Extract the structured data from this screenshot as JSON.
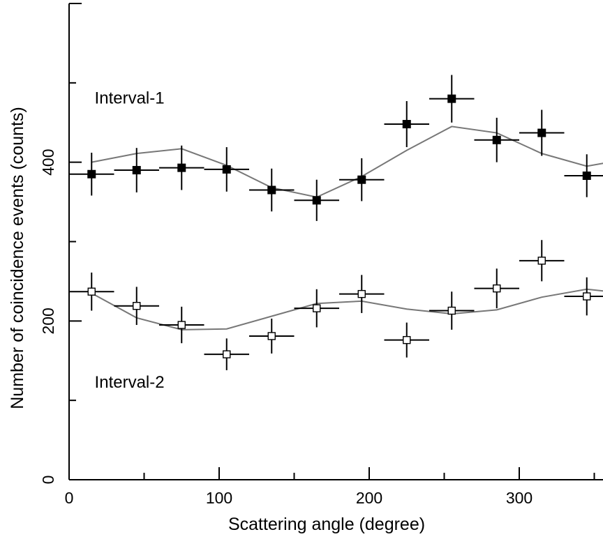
{
  "chart_data": {
    "type": "scatter",
    "title": "",
    "xlabel": "Scattering angle (degree)",
    "ylabel": "Number of coincidence events (counts)",
    "xlim": [
      0,
      360
    ],
    "ylim": [
      0,
      600
    ],
    "x_ticks": [
      0,
      100,
      200,
      300
    ],
    "y_ticks": [
      0,
      200,
      400
    ],
    "x_tick_labels": [
      "0",
      "100",
      "200",
      "300"
    ],
    "y_tick_labels": [
      "0",
      "200",
      "400"
    ],
    "x_error": 15,
    "grid": false,
    "annotations": [
      {
        "text": "Interval-1",
        "x": 17,
        "y": 474
      },
      {
        "text": "Interval-2",
        "x": 17,
        "y": 116
      }
    ],
    "series": [
      {
        "marker": "filled-square",
        "color": "#000000",
        "x": [
          15,
          45,
          75,
          105,
          135,
          165,
          195,
          225,
          255,
          285,
          315,
          345
        ],
        "y": [
          385,
          390,
          393,
          391,
          365,
          352,
          378,
          448,
          480,
          428,
          437,
          383
        ],
        "y_error": [
          27,
          28,
          28,
          28,
          27,
          26,
          27,
          29,
          30,
          28,
          29,
          27
        ],
        "model_line": [
          400,
          411,
          417,
          396,
          368,
          356,
          382,
          415,
          445,
          437,
          411,
          395,
          400
        ]
      },
      {
        "marker": "open-square",
        "color": "#000000",
        "x": [
          15,
          45,
          75,
          105,
          135,
          165,
          195,
          225,
          255,
          285,
          315,
          345
        ],
        "y": [
          237,
          219,
          195,
          158,
          181,
          216,
          234,
          176,
          213,
          241,
          276,
          231
        ],
        "y_error": [
          24,
          24,
          23,
          20,
          22,
          24,
          24,
          22,
          24,
          25,
          26,
          24
        ],
        "model_line": [
          235,
          204,
          189,
          190,
          206,
          222,
          225,
          215,
          209,
          214,
          230,
          240,
          237
        ]
      }
    ],
    "model_line_x": [
      15,
      45,
      75,
      105,
      135,
      165,
      195,
      225,
      255,
      285,
      315,
      345,
      360
    ],
    "model_line_color": "#777777"
  }
}
